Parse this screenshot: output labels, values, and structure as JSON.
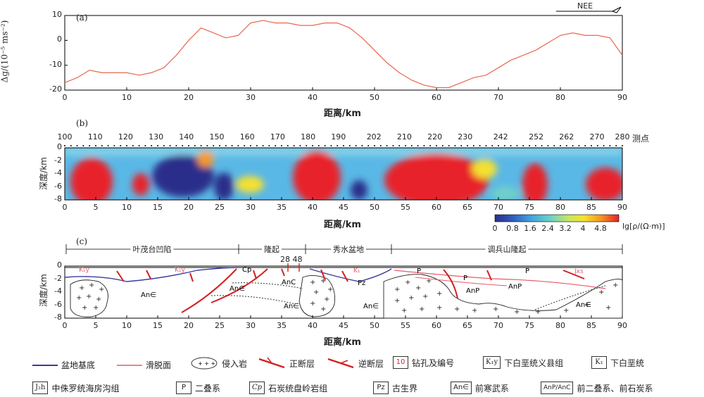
{
  "panel_a": {
    "label": "(a)",
    "direction": "NEE",
    "ylabel": "Δg/(10⁻⁵ ms⁻²)",
    "xlabel": "距离/km",
    "yticks": [
      "10",
      "0",
      "-10",
      "-20"
    ],
    "xticks": [
      "0",
      "10",
      "20",
      "30",
      "40",
      "50",
      "60",
      "70",
      "80",
      "90"
    ]
  },
  "panel_b": {
    "label": "(b)",
    "stations_title": "测点",
    "stations": [
      "100",
      "110",
      "120",
      "130",
      "140",
      "150",
      "160",
      "170",
      "180",
      "190",
      "202",
      "210",
      "220",
      "230",
      "242",
      "252",
      "262",
      "270",
      "280"
    ],
    "ylabel": "深度/km",
    "xlabel": "距离/km",
    "yticks": [
      "0",
      "-2",
      "-4",
      "-6",
      "-8"
    ],
    "xticks": [
      "0",
      "5",
      "10",
      "15",
      "20",
      "25",
      "30",
      "35",
      "40",
      "45",
      "50",
      "55",
      "60",
      "65",
      "70",
      "75",
      "80",
      "85",
      "90"
    ],
    "colorbar_ticks": [
      "0",
      "0.8",
      "1.6",
      "2.4",
      "3.2",
      "4",
      "4.8"
    ],
    "colorbar_label": "lg[ρ/(Ω·m)]"
  },
  "panel_c": {
    "label": "(c)",
    "regions": [
      "叶茂台凹陷",
      "隆起",
      "秀水盆地",
      "调兵山隆起"
    ],
    "wells": "28 48",
    "ylabel": "深度/km",
    "xlabel": "距离/km",
    "yticks": [
      "0",
      "-2",
      "-4",
      "-6",
      "-8"
    ],
    "xticks": [
      "0",
      "5",
      "10",
      "15",
      "20",
      "25",
      "30",
      "35",
      "40",
      "45",
      "50",
      "55",
      "60",
      "65",
      "70",
      "75",
      "80",
      "85",
      "90"
    ],
    "units": {
      "k1y_1": "K₁y",
      "k1y_2": "K₁y",
      "cp": "Cp",
      "an1": "An∈",
      "an2": "An∈",
      "an3": "An∈",
      "anc": "AnC",
      "an4": "An∈",
      "pz": "Pz",
      "k1": "K₁",
      "p1": "P",
      "p2": "P",
      "p3": "P",
      "anp1": "AnP",
      "anp2": "AnP",
      "an5": "An∈",
      "jxs": "Jxs"
    }
  },
  "legend": {
    "basin_base": "盆地基底",
    "detachment": "滑脱面",
    "intrusive": "侵入岩",
    "normal_fault": "正断层",
    "reverse_fault": "逆断层",
    "well_symbol": "10",
    "well_label": "钻孔及编号",
    "k1y_box": "K₁y",
    "k1y_label": "下白垩统义县组",
    "k1_box": "K₁",
    "k1_label": "下白垩统",
    "j2h_box": "J₂h",
    "j2h_label": "中侏罗统海房沟组",
    "p_box": "P",
    "p_label": "二叠系",
    "cp_box": "Cp",
    "cp_label": "石炭统盘岭岩组",
    "pz_box": "Pz",
    "pz_label": "古生界",
    "an_box": "An∈",
    "an_label": "前寒武系",
    "anp_box": "AnP/AnC",
    "anp_label": "前二叠系、前石炭系"
  },
  "colors": {
    "gravity_line": "#e8674e",
    "basin_base": "#3a3aa0",
    "detachment": "#e85a6a",
    "fault": "#d42020",
    "high": "#e8202a",
    "low": "#2b2f8a"
  },
  "chart_data": {
    "type": "line",
    "x": [
      0,
      2,
      4,
      6,
      8,
      10,
      12,
      14,
      16,
      18,
      20,
      22,
      24,
      26,
      28,
      30,
      32,
      34,
      36,
      38,
      40,
      42,
      44,
      46,
      48,
      50,
      52,
      54,
      56,
      58,
      60,
      62,
      64,
      66,
      68,
      70,
      72,
      74,
      76,
      78,
      80,
      82,
      84,
      86,
      88,
      90
    ],
    "series": [
      {
        "values": [
          -17,
          -15,
          -12,
          -13,
          -13,
          -13,
          -14,
          -13,
          -11,
          -6,
          0,
          5,
          3,
          1,
          2,
          7,
          8,
          7,
          7,
          6,
          6,
          7,
          7,
          5,
          1,
          -4,
          -9,
          -13,
          -16,
          -18,
          -19,
          -19,
          -17,
          -15,
          -14,
          -11,
          -8,
          -6,
          -4,
          -1,
          2,
          3,
          2,
          2,
          1,
          -6
        ]
      }
    ],
    "xlabel": "距离/km",
    "ylabel": "Δg/(10⁻⁵ ms⁻²)",
    "xlim": [
      0,
      90
    ],
    "ylim": [
      -20,
      10
    ]
  }
}
